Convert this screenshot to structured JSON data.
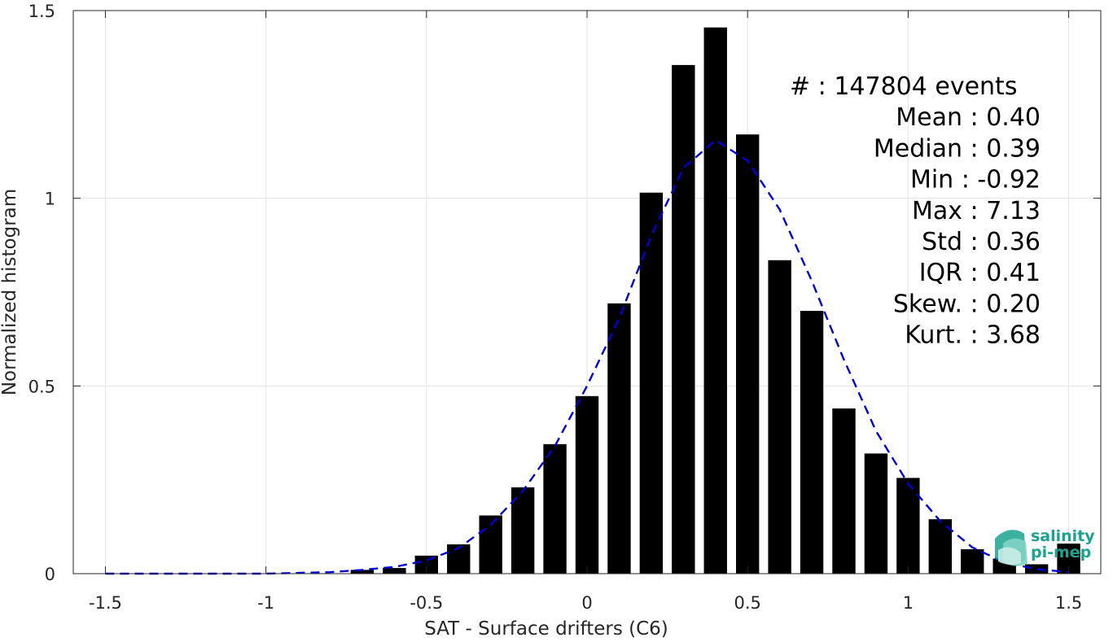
{
  "chart_data": {
    "type": "bar",
    "xlabel": "SAT - Surface drifters (C6)",
    "ylabel": "Normalized histogram",
    "xlim": [
      -1.6,
      1.6
    ],
    "ylim": [
      0,
      1.5
    ],
    "xticks": [
      -1.5,
      -1,
      -0.5,
      0,
      0.5,
      1,
      1.5
    ],
    "xtick_labels": [
      "-1.5",
      "-1",
      "-0.5",
      "0",
      "0.5",
      "1",
      "1.5"
    ],
    "yticks": [
      0,
      0.5,
      1,
      1.5
    ],
    "ytick_labels": [
      "0",
      "0.5",
      "1",
      "1.5"
    ],
    "grid": true,
    "bar_color": "#000000",
    "bars": {
      "x": [
        -0.7,
        -0.6,
        -0.5,
        -0.4,
        -0.3,
        -0.2,
        -0.1,
        0.0,
        0.1,
        0.2,
        0.3,
        0.4,
        0.5,
        0.6,
        0.7,
        0.8,
        0.9,
        1.0,
        1.1,
        1.2,
        1.3,
        1.4,
        1.5
      ],
      "values": [
        0.01,
        0.015,
        0.048,
        0.078,
        0.155,
        0.23,
        0.345,
        0.473,
        0.72,
        1.015,
        1.355,
        1.455,
        1.17,
        0.835,
        0.7,
        0.44,
        0.32,
        0.255,
        0.145,
        0.065,
        0.04,
        0.025,
        0.08
      ]
    },
    "fit_curve": {
      "color": "#0000dd",
      "style": "dashed",
      "x": [
        -1.5,
        -1.2,
        -1.0,
        -0.9,
        -0.8,
        -0.7,
        -0.6,
        -0.5,
        -0.4,
        -0.3,
        -0.2,
        -0.1,
        0.0,
        0.1,
        0.2,
        0.3,
        0.4,
        0.5,
        0.6,
        0.7,
        0.8,
        0.9,
        1.0,
        1.1,
        1.2,
        1.3,
        1.4,
        1.5
      ],
      "values": [
        0.0,
        0.0,
        0.0,
        0.002,
        0.004,
        0.01,
        0.018,
        0.035,
        0.068,
        0.13,
        0.22,
        0.34,
        0.5,
        0.68,
        0.9,
        1.08,
        1.155,
        1.1,
        0.97,
        0.78,
        0.57,
        0.38,
        0.24,
        0.14,
        0.07,
        0.03,
        0.012,
        0.004
      ]
    },
    "annotations": [
      "#  : 147804 events",
      "Mean : 0.40",
      "Median : 0.39",
      "Min : -0.92",
      "Max : 7.13",
      "Std : 0.36",
      "IQR : 0.41",
      "Skew. : 0.20",
      "Kurt. : 3.68"
    ]
  },
  "logo": {
    "line1": "salinity",
    "line2": "pi-mep",
    "color": "#1aa38f"
  }
}
